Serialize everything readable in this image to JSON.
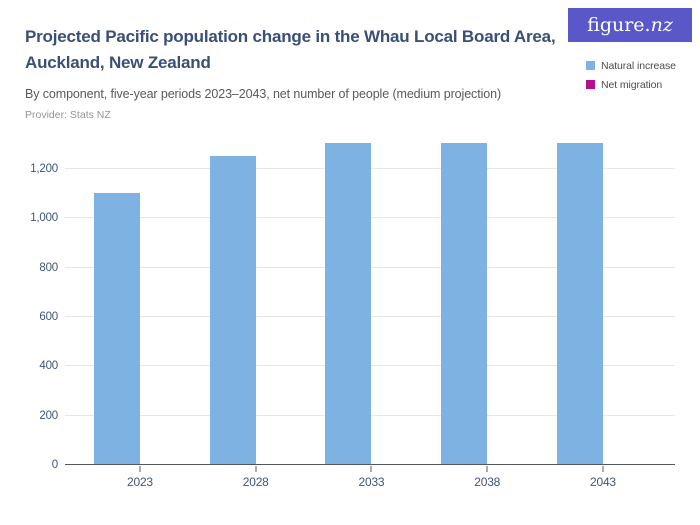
{
  "logo": {
    "text": "figure.",
    "suffix": "nz",
    "bg": "#5a57c8"
  },
  "chart_data": {
    "type": "bar",
    "title": "Projected Pacific population change in the Whau Local Board Area, Auckland, New Zealand",
    "subtitle": "By component, five-year periods 2023–2043, net number of people (medium projection)",
    "provider": "Provider: Stats NZ",
    "categories": [
      "2023",
      "2028",
      "2033",
      "2038",
      "2043"
    ],
    "series": [
      {
        "name": "Natural increase",
        "color": "#7db2e3",
        "values": [
          1100,
          1250,
          1300,
          1300,
          1300
        ]
      },
      {
        "name": "Net migration",
        "color": "#b5108d",
        "values": [
          0,
          0,
          0,
          0,
          0
        ]
      }
    ],
    "xlabel": "",
    "ylabel": "",
    "yticks": [
      0,
      200,
      400,
      600,
      800,
      1000,
      1200
    ],
    "ylim": [
      0,
      1340
    ],
    "grid": true,
    "legend_position": "top-right"
  }
}
